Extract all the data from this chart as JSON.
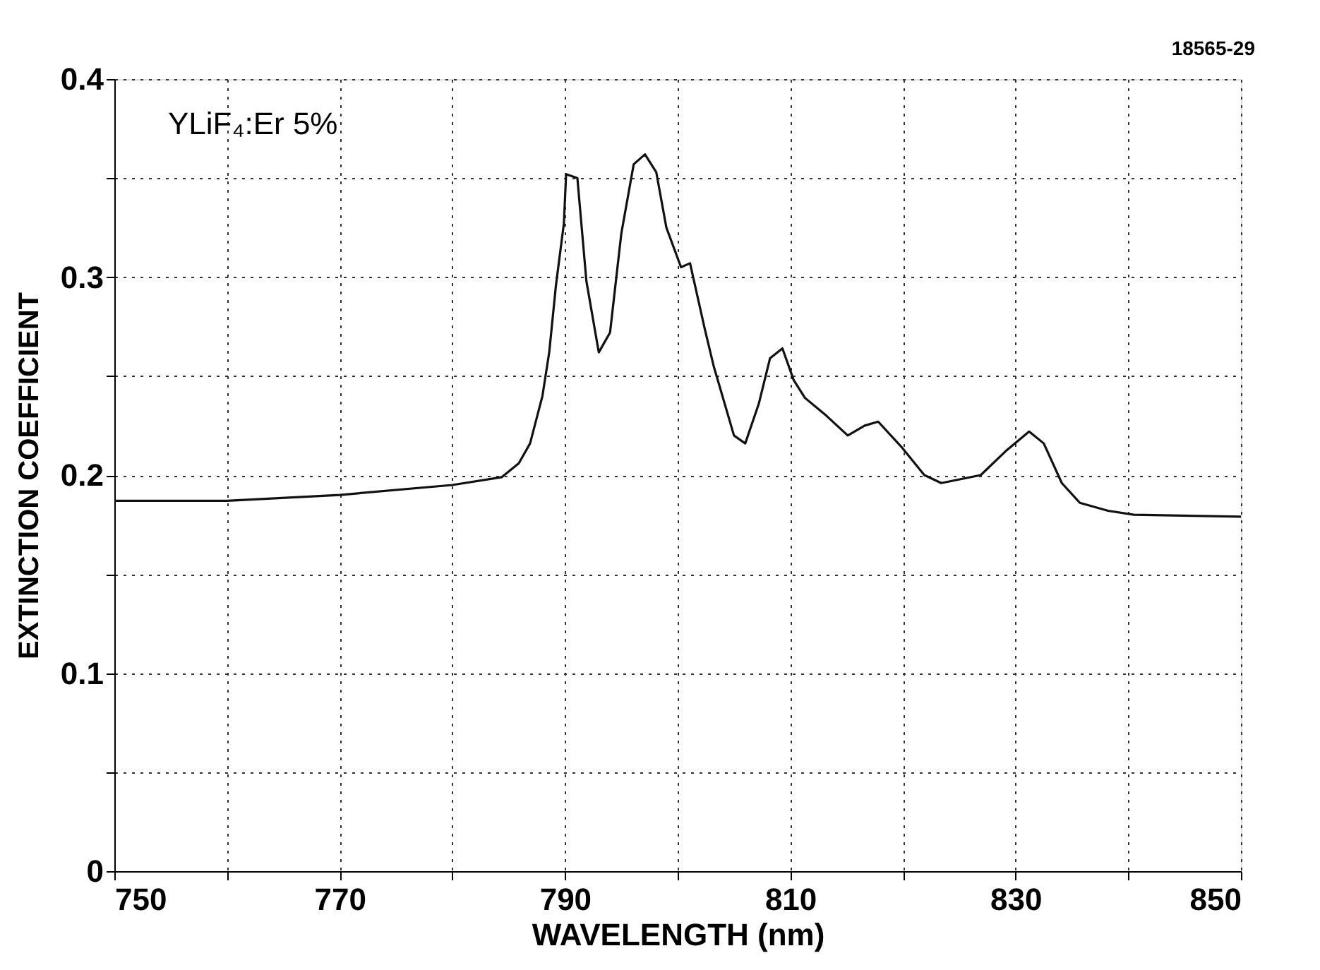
{
  "chart_data": {
    "type": "line",
    "xlabel": "WAVELENGTH (nm)",
    "ylabel": "EXTINCTION COEFFICIENT",
    "annotations": [
      "YLiF₄:Er 5%",
      "18565-29"
    ],
    "x": [
      750,
      760,
      770,
      780,
      784.4,
      785.9,
      786.9,
      788.0,
      788.6,
      789.2,
      789.9,
      790.1,
      791.1,
      791.9,
      793.0,
      794.0,
      795.0,
      796.1,
      797.1,
      798.1,
      799.0,
      800.3,
      801.1,
      802.4,
      803.2,
      805.0,
      806.0,
      807.2,
      808.2,
      809.3,
      810.3,
      811.3,
      813.2,
      815.1,
      816.6,
      817.8,
      819.9,
      821.9,
      823.4,
      826.9,
      829.1,
      831.2,
      832.5,
      834.1,
      835.7,
      838.2,
      840.5,
      850
    ],
    "series": [
      {
        "color": "#111111",
        "values": [
          0.187,
          0.187,
          0.19,
          0.195,
          0.199,
          0.206,
          0.216,
          0.24,
          0.262,
          0.296,
          0.327,
          0.352,
          0.35,
          0.298,
          0.262,
          0.272,
          0.322,
          0.357,
          0.362,
          0.353,
          0.325,
          0.305,
          0.307,
          0.274,
          0.255,
          0.22,
          0.216,
          0.236,
          0.259,
          0.264,
          0.248,
          0.239,
          0.23,
          0.22,
          0.225,
          0.227,
          0.214,
          0.2,
          0.196,
          0.2,
          0.212,
          0.222,
          0.216,
          0.196,
          0.186,
          0.182,
          0.18,
          0.179
        ]
      }
    ],
    "xlim": [
      750,
      850
    ],
    "xticks": [
      750,
      {
        "value": 760,
        "label": null
      },
      770,
      {
        "value": 780,
        "label": null
      },
      790,
      {
        "value": 800,
        "label": null
      },
      810,
      {
        "value": 820,
        "label": null
      },
      830,
      {
        "value": 840,
        "label": null
      },
      850
    ],
    "ylim": [
      0,
      0.4
    ],
    "yticks": [
      0,
      {
        "value": 0.05,
        "label": null
      },
      0.1,
      {
        "value": 0.15,
        "label": null
      },
      0.2,
      {
        "value": 0.25,
        "label": null
      },
      0.3,
      {
        "value": 0.35,
        "label": null
      },
      0.4
    ],
    "grid": true,
    "marker": "none",
    "line_style": "solid"
  }
}
